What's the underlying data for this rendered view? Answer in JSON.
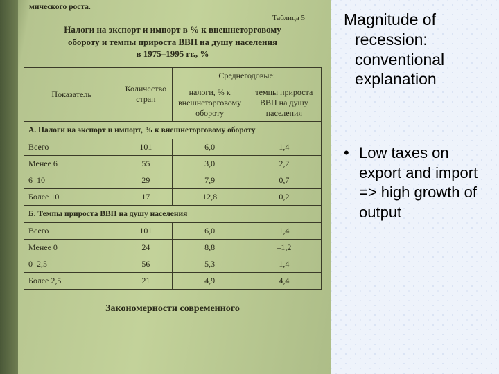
{
  "doc": {
    "top_fragment": "мического роста.",
    "table_label": "Таблица 5",
    "title_lines": [
      "Налоги на экспорт и импорт в % к внешнеторговому",
      "обороту и темпы прироста ВВП на душу населения",
      "в 1975–1995 гг., %"
    ],
    "header": {
      "indicator": "Показатель",
      "count": "Количество стран",
      "group": "Среднегодовые:",
      "taxes": "налоги, % к внешнеторговому обороту",
      "growth": "темпы прироста ВВП на душу населения"
    },
    "section_a": "А. Налоги на экспорт и импорт, % к внешнеторговому обороту",
    "rows_a": [
      {
        "label": "Всего",
        "n": "101",
        "t": "6,0",
        "g": "1,4"
      },
      {
        "label": "Менее 6",
        "n": "55",
        "t": "3,0",
        "g": "2,2"
      },
      {
        "label": "6–10",
        "n": "29",
        "t": "7,9",
        "g": "0,7"
      },
      {
        "label": "Более 10",
        "n": "17",
        "t": "12,8",
        "g": "0,2"
      }
    ],
    "section_b": "Б. Темпы прироста ВВП на душу населения",
    "rows_b": [
      {
        "label": "Всего",
        "n": "101",
        "t": "6,0",
        "g": "1,4"
      },
      {
        "label": "Менее 0",
        "n": "24",
        "t": "8,8",
        "g": "–1,2"
      },
      {
        "label": "0–2,5",
        "n": "56",
        "t": "5,3",
        "g": "1,4"
      },
      {
        "label": "Более 2,5",
        "n": "21",
        "t": "4,9",
        "g": "4,4"
      }
    ],
    "bottom_title": "Закономерности современного"
  },
  "slide": {
    "title": "Magnitude of recession: conventional explanation",
    "bullet": "Low taxes on export and import => high growth of output"
  },
  "style": {
    "left_bg_start": "#b5c48f",
    "right_bg": "#eef3fb",
    "border_color": "#3a3a28",
    "text_color": "#2a2a1a",
    "slide_font": "Arial",
    "doc_font": "Times New Roman",
    "title_fontsize_pt": 17,
    "bullet_fontsize_pt": 16
  }
}
